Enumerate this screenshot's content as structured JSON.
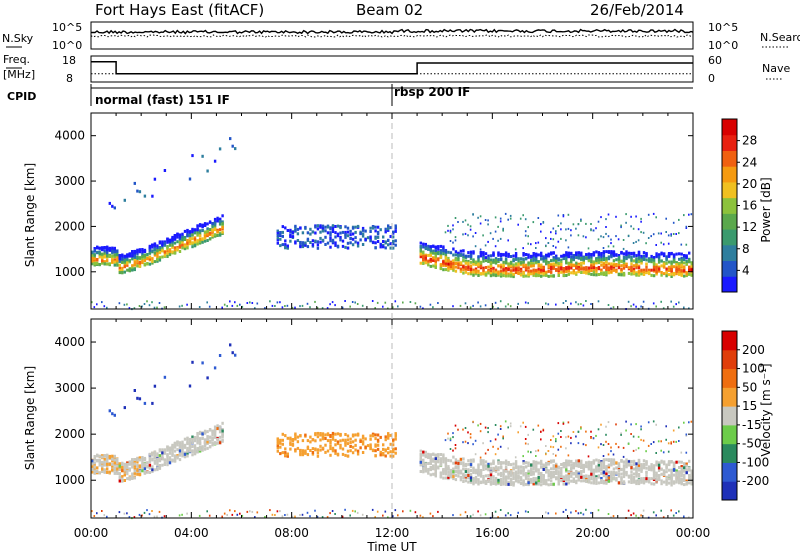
{
  "header": {
    "title": "Fort Hays East (fitACF)",
    "beam": "Beam 02",
    "date": "26/Feb/2014"
  },
  "panels": {
    "nsky": {
      "label": "N.Sky",
      "right_label": "N.Search",
      "yticks": [
        "10^5",
        "10^0"
      ]
    },
    "freq": {
      "label": "Freq.",
      "units": "[MHz]",
      "yticks": [
        "18",
        "8"
      ],
      "right_label": "Nave",
      "right_yticks": [
        "60",
        "0"
      ]
    },
    "cpid": {
      "label": "CPID",
      "modes": [
        "normal (fast) 151 IF",
        "rbsp 200 IF"
      ]
    }
  },
  "colors": {
    "power": [
      "#1a1aff",
      "#2255c8",
      "#2e7e9e",
      "#3a9a6e",
      "#5aa84c",
      "#8cc23c",
      "#f0c020",
      "#f59a10",
      "#f06010",
      "#e82010",
      "#d80000"
    ],
    "velocity": [
      "#1e30b8",
      "#2e5ad2",
      "#2a8a5e",
      "#6ccc4a",
      "#c8c8c0",
      "#f5a030",
      "#ef6e10",
      "#e03e0a",
      "#d80000"
    ]
  },
  "chart_data": [
    {
      "type": "heatmap",
      "name": "power",
      "ylabel": "Slant Range [km]",
      "yticks": [
        1000,
        2000,
        3000,
        4000
      ],
      "ylim": [
        180,
        4500
      ],
      "xlim_hours": [
        0,
        24
      ],
      "colorbar": {
        "label": "Power [dB]",
        "ticks": [
          "4",
          "8",
          "12",
          "16",
          "20",
          "24",
          "28"
        ]
      }
    },
    {
      "type": "heatmap",
      "name": "velocity",
      "ylabel": "Slant Range [km]",
      "yticks": [
        1000,
        2000,
        3000,
        4000
      ],
      "ylim": [
        180,
        4500
      ],
      "xlim_hours": [
        0,
        24
      ],
      "xlabel": "Time UT",
      "xticks": [
        "00:00",
        "04:00",
        "08:00",
        "12:00",
        "16:00",
        "20:00",
        "00:00"
      ],
      "colorbar": {
        "label": "Velocity [m s⁻¹]",
        "ticks": [
          "200",
          "100",
          "50",
          "15",
          "-15",
          "-50",
          "-100",
          "-200"
        ]
      }
    }
  ],
  "lines": {
    "freq_mhz": [
      [
        0,
        16
      ],
      [
        1,
        16
      ],
      [
        1,
        11
      ],
      [
        13,
        11
      ],
      [
        13,
        15.5
      ],
      [
        24,
        15.5
      ]
    ],
    "nave": [
      [
        0,
        11
      ],
      [
        24,
        11
      ]
    ],
    "mode_change_hour": 12
  }
}
